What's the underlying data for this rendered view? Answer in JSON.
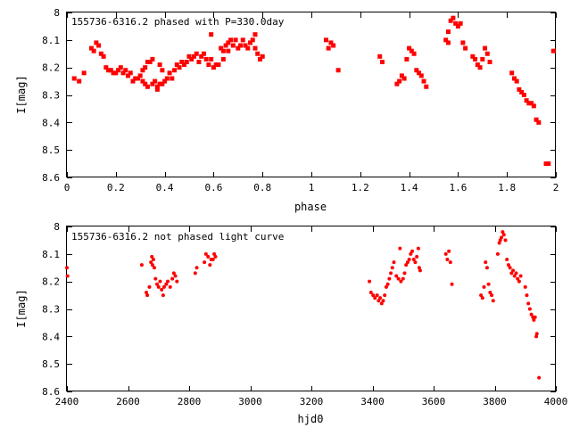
{
  "chart_data": [
    {
      "type": "scatter",
      "title": "155736-6316.2 phased with P=330.0day",
      "xlabel": "phase",
      "ylabel": "I[mag]",
      "xlim": [
        0,
        2
      ],
      "ylim": [
        8.6,
        8.0
      ],
      "y_inverted": true,
      "xticks": [
        "0",
        "0.2",
        "0.4",
        "0.6",
        "0.8",
        "1",
        "1.2",
        "1.4",
        "1.6",
        "1.8",
        "2"
      ],
      "xtick_values": [
        0,
        0.2,
        0.4,
        0.6,
        0.8,
        1.0,
        1.2,
        1.4,
        1.6,
        1.8,
        2.0
      ],
      "yticks": [
        "8",
        "8.1",
        "8.2",
        "8.3",
        "8.4",
        "8.5",
        "8.6"
      ],
      "ytick_values": [
        8.0,
        8.1,
        8.2,
        8.3,
        8.4,
        8.5,
        8.6
      ],
      "grid": false,
      "marker_color": "#ff0000",
      "points": [
        [
          0.03,
          8.24
        ],
        [
          0.05,
          8.25
        ],
        [
          0.07,
          8.22
        ],
        [
          0.1,
          8.13
        ],
        [
          0.11,
          8.14
        ],
        [
          0.12,
          8.11
        ],
        [
          0.13,
          8.12
        ],
        [
          0.14,
          8.15
        ],
        [
          0.15,
          8.16
        ],
        [
          0.16,
          8.2
        ],
        [
          0.17,
          8.21
        ],
        [
          0.18,
          8.21
        ],
        [
          0.19,
          8.22
        ],
        [
          0.2,
          8.22
        ],
        [
          0.21,
          8.21
        ],
        [
          0.22,
          8.2
        ],
        [
          0.23,
          8.22
        ],
        [
          0.24,
          8.21
        ],
        [
          0.25,
          8.23
        ],
        [
          0.26,
          8.22
        ],
        [
          0.27,
          8.25
        ],
        [
          0.28,
          8.24
        ],
        [
          0.29,
          8.24
        ],
        [
          0.3,
          8.23
        ],
        [
          0.31,
          8.21
        ],
        [
          0.32,
          8.2
        ],
        [
          0.31,
          8.25
        ],
        [
          0.32,
          8.26
        ],
        [
          0.33,
          8.27
        ],
        [
          0.33,
          8.18
        ],
        [
          0.34,
          8.18
        ],
        [
          0.35,
          8.17
        ],
        [
          0.35,
          8.26
        ],
        [
          0.36,
          8.25
        ],
        [
          0.37,
          8.27
        ],
        [
          0.37,
          8.28
        ],
        [
          0.38,
          8.26
        ],
        [
          0.38,
          8.19
        ],
        [
          0.39,
          8.21
        ],
        [
          0.39,
          8.26
        ],
        [
          0.4,
          8.25
        ],
        [
          0.41,
          8.24
        ],
        [
          0.42,
          8.22
        ],
        [
          0.43,
          8.24
        ],
        [
          0.44,
          8.21
        ],
        [
          0.45,
          8.19
        ],
        [
          0.46,
          8.2
        ],
        [
          0.47,
          8.18
        ],
        [
          0.48,
          8.19
        ],
        [
          0.49,
          8.18
        ],
        [
          0.5,
          8.16
        ],
        [
          0.51,
          8.17
        ],
        [
          0.52,
          8.16
        ],
        [
          0.53,
          8.15
        ],
        [
          0.54,
          8.18
        ],
        [
          0.55,
          8.16
        ],
        [
          0.56,
          8.15
        ],
        [
          0.57,
          8.17
        ],
        [
          0.58,
          8.19
        ],
        [
          0.59,
          8.17
        ],
        [
          0.59,
          8.08
        ],
        [
          0.6,
          8.2
        ],
        [
          0.61,
          8.19
        ],
        [
          0.62,
          8.19
        ],
        [
          0.63,
          8.13
        ],
        [
          0.64,
          8.14
        ],
        [
          0.64,
          8.17
        ],
        [
          0.65,
          8.12
        ],
        [
          0.66,
          8.11
        ],
        [
          0.66,
          8.14
        ],
        [
          0.67,
          8.1
        ],
        [
          0.68,
          8.12
        ],
        [
          0.69,
          8.1
        ],
        [
          0.7,
          8.13
        ],
        [
          0.71,
          8.12
        ],
        [
          0.72,
          8.1
        ],
        [
          0.73,
          8.12
        ],
        [
          0.74,
          8.13
        ],
        [
          0.75,
          8.11
        ],
        [
          0.76,
          8.1
        ],
        [
          0.77,
          8.08
        ],
        [
          0.77,
          8.13
        ],
        [
          0.78,
          8.15
        ],
        [
          0.79,
          8.17
        ],
        [
          0.8,
          8.16
        ],
        [
          1.06,
          8.1
        ],
        [
          1.07,
          8.13
        ],
        [
          1.08,
          8.11
        ],
        [
          1.09,
          8.12
        ],
        [
          1.11,
          8.21
        ],
        [
          1.28,
          8.16
        ],
        [
          1.29,
          8.18
        ],
        [
          1.35,
          8.26
        ],
        [
          1.36,
          8.25
        ],
        [
          1.37,
          8.23
        ],
        [
          1.38,
          8.24
        ],
        [
          1.39,
          8.17
        ],
        [
          1.4,
          8.13
        ],
        [
          1.41,
          8.14
        ],
        [
          1.42,
          8.15
        ],
        [
          1.43,
          8.21
        ],
        [
          1.44,
          8.22
        ],
        [
          1.45,
          8.23
        ],
        [
          1.46,
          8.25
        ],
        [
          1.47,
          8.27
        ],
        [
          1.55,
          8.1
        ],
        [
          1.56,
          8.11
        ],
        [
          1.56,
          8.07
        ],
        [
          1.57,
          8.03
        ],
        [
          1.58,
          8.02
        ],
        [
          1.59,
          8.04
        ],
        [
          1.6,
          8.05
        ],
        [
          1.61,
          8.04
        ],
        [
          1.62,
          8.11
        ],
        [
          1.63,
          8.13
        ],
        [
          1.66,
          8.16
        ],
        [
          1.67,
          8.17
        ],
        [
          1.68,
          8.19
        ],
        [
          1.69,
          8.2
        ],
        [
          1.7,
          8.17
        ],
        [
          1.71,
          8.13
        ],
        [
          1.72,
          8.15
        ],
        [
          1.73,
          8.18
        ],
        [
          1.82,
          8.22
        ],
        [
          1.83,
          8.24
        ],
        [
          1.84,
          8.25
        ],
        [
          1.85,
          8.28
        ],
        [
          1.86,
          8.29
        ],
        [
          1.87,
          8.3
        ],
        [
          1.88,
          8.32
        ],
        [
          1.89,
          8.33
        ],
        [
          1.9,
          8.33
        ],
        [
          1.91,
          8.34
        ],
        [
          1.92,
          8.39
        ],
        [
          1.93,
          8.4
        ],
        [
          1.96,
          8.55
        ],
        [
          1.97,
          8.55
        ],
        [
          1.99,
          8.14
        ]
      ]
    },
    {
      "type": "scatter",
      "title": "155736-6316.2 not phased light curve",
      "xlabel": "hjd0",
      "ylabel": "I[mag]",
      "xlim": [
        2400,
        4000
      ],
      "ylim": [
        8.6,
        8.0
      ],
      "y_inverted": true,
      "xticks": [
        "2400",
        "2600",
        "2800",
        "3000",
        "3200",
        "3400",
        "3600",
        "3800",
        "4000"
      ],
      "xtick_values": [
        2400,
        2600,
        2800,
        3000,
        3200,
        3400,
        3600,
        3800,
        4000
      ],
      "yticks": [
        "8",
        "8.1",
        "8.2",
        "8.3",
        "8.4",
        "8.5",
        "8.6"
      ],
      "ytick_values": [
        8.0,
        8.1,
        8.2,
        8.3,
        8.4,
        8.5,
        8.6
      ],
      "grid": false,
      "marker_color": "#ff0000",
      "points": [
        [
          2400,
          8.15
        ],
        [
          2402,
          8.18
        ],
        [
          2645,
          8.14
        ],
        [
          2660,
          8.24
        ],
        [
          2663,
          8.25
        ],
        [
          2670,
          8.22
        ],
        [
          2675,
          8.13
        ],
        [
          2678,
          8.11
        ],
        [
          2680,
          8.14
        ],
        [
          2683,
          8.12
        ],
        [
          2686,
          8.15
        ],
        [
          2690,
          8.19
        ],
        [
          2695,
          8.21
        ],
        [
          2700,
          8.22
        ],
        [
          2705,
          8.2
        ],
        [
          2710,
          8.23
        ],
        [
          2715,
          8.25
        ],
        [
          2718,
          8.22
        ],
        [
          2725,
          8.21
        ],
        [
          2730,
          8.2
        ],
        [
          2738,
          8.22
        ],
        [
          2745,
          8.19
        ],
        [
          2750,
          8.17
        ],
        [
          2755,
          8.18
        ],
        [
          2760,
          8.2
        ],
        [
          2820,
          8.17
        ],
        [
          2825,
          8.15
        ],
        [
          2850,
          8.13
        ],
        [
          2855,
          8.1
        ],
        [
          2862,
          8.11
        ],
        [
          2868,
          8.14
        ],
        [
          2872,
          8.12
        ],
        [
          2878,
          8.12
        ],
        [
          2882,
          8.1
        ],
        [
          2886,
          8.11
        ],
        [
          3390,
          8.2
        ],
        [
          3395,
          8.24
        ],
        [
          3402,
          8.25
        ],
        [
          3408,
          8.26
        ],
        [
          3415,
          8.25
        ],
        [
          3420,
          8.27
        ],
        [
          3425,
          8.26
        ],
        [
          3430,
          8.28
        ],
        [
          3435,
          8.27
        ],
        [
          3440,
          8.25
        ],
        [
          3445,
          8.22
        ],
        [
          3450,
          8.21
        ],
        [
          3455,
          8.19
        ],
        [
          3460,
          8.17
        ],
        [
          3465,
          8.15
        ],
        [
          3470,
          8.13
        ],
        [
          3478,
          8.18
        ],
        [
          3485,
          8.19
        ],
        [
          3490,
          8.08
        ],
        [
          3493,
          8.2
        ],
        [
          3500,
          8.19
        ],
        [
          3505,
          8.17
        ],
        [
          3510,
          8.14
        ],
        [
          3515,
          8.13
        ],
        [
          3520,
          8.12
        ],
        [
          3525,
          8.1
        ],
        [
          3530,
          8.09
        ],
        [
          3535,
          8.12
        ],
        [
          3540,
          8.13
        ],
        [
          3545,
          8.11
        ],
        [
          3550,
          8.08
        ],
        [
          3553,
          8.15
        ],
        [
          3556,
          8.16
        ],
        [
          3640,
          8.1
        ],
        [
          3645,
          8.12
        ],
        [
          3650,
          8.09
        ],
        [
          3655,
          8.13
        ],
        [
          3660,
          8.21
        ],
        [
          3755,
          8.25
        ],
        [
          3760,
          8.26
        ],
        [
          3765,
          8.22
        ],
        [
          3770,
          8.13
        ],
        [
          3775,
          8.15
        ],
        [
          3780,
          8.21
        ],
        [
          3785,
          8.24
        ],
        [
          3790,
          8.25
        ],
        [
          3795,
          8.27
        ],
        [
          3810,
          8.1
        ],
        [
          3815,
          8.06
        ],
        [
          3818,
          8.05
        ],
        [
          3822,
          8.04
        ],
        [
          3826,
          8.02
        ],
        [
          3830,
          8.03
        ],
        [
          3835,
          8.05
        ],
        [
          3840,
          8.12
        ],
        [
          3845,
          8.14
        ],
        [
          3850,
          8.15
        ],
        [
          3855,
          8.17
        ],
        [
          3860,
          8.16
        ],
        [
          3865,
          8.18
        ],
        [
          3870,
          8.17
        ],
        [
          3875,
          8.19
        ],
        [
          3880,
          8.2
        ],
        [
          3885,
          8.18
        ],
        [
          3900,
          8.22
        ],
        [
          3905,
          8.25
        ],
        [
          3910,
          8.28
        ],
        [
          3915,
          8.3
        ],
        [
          3920,
          8.32
        ],
        [
          3925,
          8.33
        ],
        [
          3928,
          8.34
        ],
        [
          3932,
          8.33
        ],
        [
          3936,
          8.4
        ],
        [
          3938,
          8.39
        ],
        [
          3945,
          8.55
        ]
      ]
    }
  ]
}
